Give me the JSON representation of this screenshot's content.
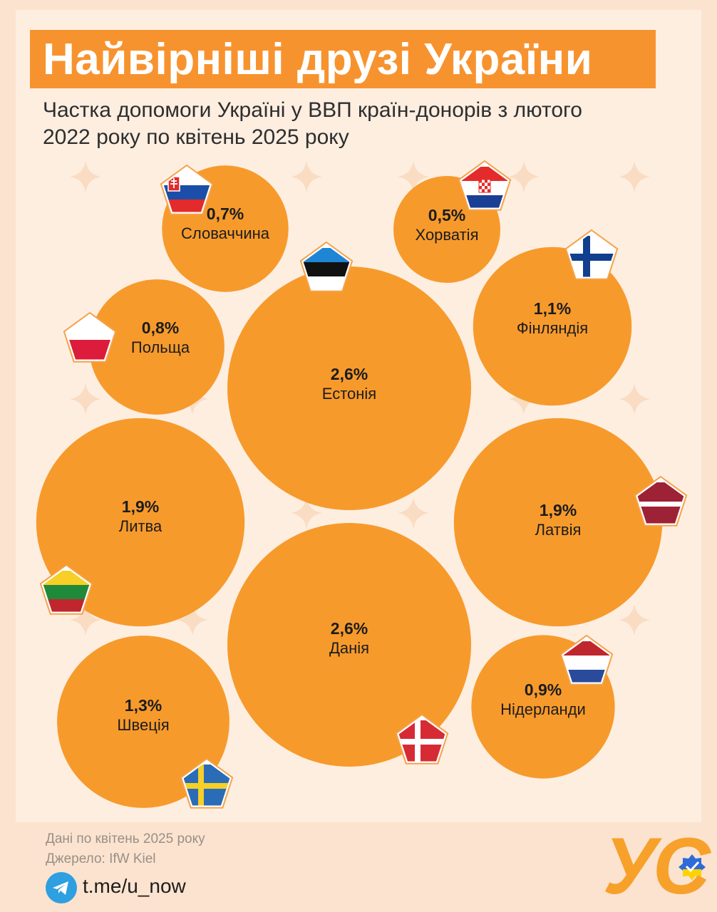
{
  "title": "Найвірніші друзі України",
  "subtitle": "Частка допомоги Україні у ВВП країн-донорів з лютого 2022 року по квітень 2025 року",
  "colors": {
    "bubble": "#f79a2c",
    "title_bar": "#f7932f",
    "background": "#fdeee0"
  },
  "chart_data": {
    "type": "bubble",
    "unit": "% ВВП",
    "series": [
      {
        "label": "Словаччина",
        "value": 0.7,
        "value_text": "0,7%",
        "flag": "slovakia-flag"
      },
      {
        "label": "Хорватія",
        "value": 0.5,
        "value_text": "0,5%",
        "flag": "croatia-flag"
      },
      {
        "label": "Польща",
        "value": 0.8,
        "value_text": "0,8%",
        "flag": "poland-flag"
      },
      {
        "label": "Естонія",
        "value": 2.6,
        "value_text": "2,6%",
        "flag": "estonia-flag"
      },
      {
        "label": "Фінляндія",
        "value": 1.1,
        "value_text": "1,1%",
        "flag": "finland-flag"
      },
      {
        "label": "Литва",
        "value": 1.9,
        "value_text": "1,9%",
        "flag": "lithuania-flag"
      },
      {
        "label": "Латвія",
        "value": 1.9,
        "value_text": "1,9%",
        "flag": "latvia-flag"
      },
      {
        "label": "Данія",
        "value": 2.6,
        "value_text": "2,6%",
        "flag": "denmark-flag"
      },
      {
        "label": "Швеція",
        "value": 1.3,
        "value_text": "1,3%",
        "flag": "sweden-flag"
      },
      {
        "label": "Нідерланди",
        "value": 0.9,
        "value_text": "0,9%",
        "flag": "netherlands-flag"
      }
    ]
  },
  "footer": {
    "note": "Дані по квітень 2025 року",
    "source": "Джерело: IfW Kiel",
    "telegram_icon": "telegram-icon",
    "link": "t.me/u_now",
    "logo": "УС"
  }
}
